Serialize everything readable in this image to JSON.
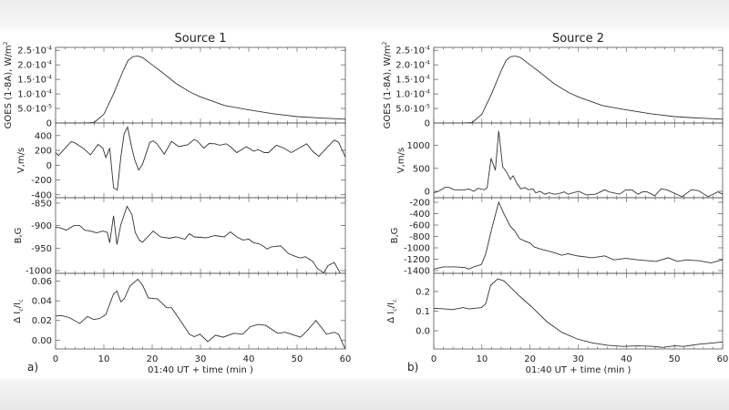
{
  "chart_data": [
    {
      "id": "a",
      "type": "line",
      "title": "Source 1",
      "panel_tag": "a)",
      "xlabel": "01:40 UT + time (min )",
      "xlim": [
        0,
        60
      ],
      "xticks": [
        "0",
        "10",
        "20",
        "30",
        "40",
        "50",
        "60"
      ],
      "panels": [
        {
          "ylabel": "GOES (1-8A), W/m^2",
          "ylim": [
            0,
            0.00026
          ],
          "yticks": [
            {
              "v": 0,
              "label": "0"
            },
            {
              "v": 5e-05,
              "label": "5.0·10^-5"
            },
            {
              "v": 0.0001,
              "label": "1.0·10^-4"
            },
            {
              "v": 0.00015,
              "label": "1.5·10^-4"
            },
            {
              "v": 0.0002,
              "label": "2.0·10^-4"
            },
            {
              "v": 0.00025,
              "label": "2.5·10^-4"
            }
          ],
          "x": [
            0,
            6,
            8,
            10,
            12,
            14,
            15,
            16,
            17,
            18,
            20,
            22,
            25,
            28,
            30,
            35,
            40,
            45,
            50,
            55,
            60
          ],
          "y": [
            0,
            0,
            2e-06,
            3e-05,
            0.0001,
            0.00018,
            0.000215,
            0.000228,
            0.00023,
            0.000225,
            0.0002,
            0.000175,
            0.000135,
            0.000105,
            9e-05,
            6e-05,
            4.5e-05,
            3.2e-05,
            2.2e-05,
            1.7e-05,
            1.3e-05
          ]
        },
        {
          "ylabel": "V,m/s",
          "ylim": [
            -440,
            570
          ],
          "yticks": [
            {
              "v": -400,
              "label": "-400"
            },
            {
              "v": -200,
              "label": "-200"
            },
            {
              "v": 0,
              "label": "0"
            },
            {
              "v": 200,
              "label": "200"
            },
            {
              "v": 400,
              "label": "400"
            }
          ],
          "x": [
            0,
            0.6,
            3.2,
            3.8,
            5.7,
            7.2,
            8.8,
            9.8,
            10.4,
            11.2,
            12,
            12.8,
            13.5,
            14.2,
            14.9,
            15.8,
            16.4,
            17.2,
            18,
            19.5,
            20.2,
            21,
            22.5,
            24,
            25.5,
            27.4,
            28.7,
            29.3,
            30.7,
            31.8,
            33,
            34,
            35.3,
            36.2,
            37.5,
            39.5,
            41,
            42,
            43.2,
            44.1,
            45.7,
            47.3,
            48.8,
            50.4,
            52,
            53.2,
            54.5,
            56.1,
            57.7,
            58.6,
            60
          ],
          "y": [
            170,
            130,
            317,
            309,
            230,
            139,
            281,
            230,
            103,
            230,
            -305,
            -337,
            111,
            428,
            515,
            230,
            71,
            -67,
            12,
            309,
            329,
            289,
            150,
            321,
            250,
            277,
            348,
            329,
            230,
            293,
            289,
            269,
            289,
            250,
            170,
            250,
            190,
            210,
            170,
            170,
            269,
            230,
            170,
            230,
            289,
            190,
            119,
            230,
            340,
            309,
            111
          ]
        },
        {
          "ylabel": "B,G",
          "ylim": [
            -1006,
            -838
          ],
          "yticks": [
            {
              "v": -1000,
              "label": "-1000"
            },
            {
              "v": -950,
              "label": "-950"
            },
            {
              "v": -900,
              "label": "-900"
            },
            {
              "v": -850,
              "label": "-850"
            }
          ],
          "x": [
            0,
            1,
            2.2,
            3.8,
            5,
            6,
            7.2,
            8.5,
            9.8,
            10.7,
            11.2,
            12,
            12.7,
            13.5,
            14.8,
            15.8,
            16.5,
            17.3,
            18,
            20.2,
            21.7,
            23.6,
            24.9,
            26.8,
            27.7,
            28.7,
            31.2,
            33,
            34.9,
            36.2,
            37.5,
            38.8,
            40,
            41,
            42,
            42.8,
            43.8,
            44.7,
            46.6,
            48.2,
            49.8,
            50.7,
            51.7,
            53.2,
            54.2,
            55.5,
            56.4,
            57.7,
            58.9
          ],
          "y": [
            -904,
            -905,
            -910,
            -900,
            -900,
            -910,
            -912,
            -916,
            -912,
            -915,
            -938,
            -878,
            -942,
            -898,
            -857,
            -875,
            -915,
            -932,
            -937,
            -912,
            -925,
            -928,
            -925,
            -930,
            -918,
            -925,
            -927,
            -922,
            -925,
            -914,
            -925,
            -932,
            -930,
            -938,
            -940,
            -944,
            -952,
            -947,
            -945,
            -962,
            -969,
            -972,
            -969,
            -979,
            -995,
            -1005,
            -989,
            -982,
            -1005
          ]
        },
        {
          "ylabel": "Δ I_c/I_c",
          "ylim": [
            -0.009,
            0.068
          ],
          "yticks": [
            {
              "v": 0,
              "label": "0.00"
            },
            {
              "v": 0.02,
              "label": "0.02"
            },
            {
              "v": 0.04,
              "label": "0.04"
            },
            {
              "v": 0.06,
              "label": "0.06"
            }
          ],
          "x": [
            0,
            1.3,
            2.8,
            5,
            6.6,
            7.9,
            9.1,
            10.4,
            12,
            12.7,
            13.5,
            14.2,
            15.4,
            17,
            18,
            19.2,
            21.1,
            23,
            24,
            26.1,
            27.7,
            28.7,
            29.9,
            31.5,
            33.1,
            34.7,
            36.9,
            38.8,
            40.3,
            41.9,
            43.5,
            46,
            47.6,
            50.7,
            52,
            53.9,
            56.1,
            57.7,
            58.6,
            59.9
          ],
          "y": [
            0.0246,
            0.025,
            0.023,
            0.017,
            0.024,
            0.021,
            0.022,
            0.026,
            0.047,
            0.05,
            0.039,
            0.042,
            0.055,
            0.062,
            0.056,
            0.043,
            0.042,
            0.033,
            0.033,
            0.018,
            0.006,
            0.0035,
            0.006,
            -0.0016,
            0.005,
            0.003,
            0.007,
            0.006,
            0.0136,
            0.016,
            0.015,
            0.007,
            0.008,
            0.003,
            0.009,
            0.02,
            0.006,
            0.008,
            0.006,
            -0.0085
          ]
        }
      ]
    },
    {
      "id": "b",
      "type": "line",
      "title": "Source 2",
      "panel_tag": "b)",
      "xlabel": "01:40 UT + time (min )",
      "xlim": [
        0,
        60
      ],
      "xticks": [
        "0",
        "10",
        "20",
        "30",
        "40",
        "50",
        "60"
      ],
      "panels": [
        {
          "ylabel": "GOES (1-8A), W/m^2",
          "ylim": [
            0,
            0.00026
          ],
          "yticks": [
            {
              "v": 0,
              "label": "0"
            },
            {
              "v": 5e-05,
              "label": "5.0·10^-5"
            },
            {
              "v": 0.0001,
              "label": "1.0·10^-4"
            },
            {
              "v": 0.00015,
              "label": "1.5·10^-4"
            },
            {
              "v": 0.0002,
              "label": "2.0·10^-4"
            },
            {
              "v": 0.00025,
              "label": "2.5·10^-4"
            }
          ],
          "x": [
            0,
            6,
            8,
            10,
            12,
            14,
            15,
            16,
            17,
            18,
            20,
            22,
            25,
            28,
            30,
            35,
            40,
            45,
            50,
            55,
            60
          ],
          "y": [
            0,
            0,
            2e-06,
            3e-05,
            0.0001,
            0.00018,
            0.000215,
            0.000228,
            0.00023,
            0.000225,
            0.0002,
            0.000175,
            0.000135,
            0.000105,
            9e-05,
            6e-05,
            4.5e-05,
            3.2e-05,
            2.2e-05,
            1.7e-05,
            1.3e-05
          ]
        },
        {
          "ylabel": "V,m/s",
          "ylim": [
            -140,
            1490
          ],
          "yticks": [
            {
              "v": 0,
              "label": "0"
            },
            {
              "v": 500,
              "label": "500"
            },
            {
              "v": 1000,
              "label": "1000"
            }
          ],
          "x": [
            0,
            1,
            2.3,
            3.2,
            4.2,
            6.4,
            7.3,
            8.3,
            9.2,
            10.5,
            11.1,
            11.9,
            12.8,
            13.5,
            14.3,
            15.1,
            15.9,
            16.5,
            17.3,
            18.1,
            18.9,
            19.7,
            20.6,
            21.2,
            22.1,
            23.1,
            24,
            25,
            26,
            27.1,
            27.9,
            30.1,
            31.7,
            33.6,
            35.5,
            36.4,
            38.6,
            39.9,
            41.2,
            42.4,
            43.4,
            44.3,
            45.9,
            47.2,
            48.4,
            51.6,
            53.5,
            55,
            57,
            59,
            60
          ],
          "y": [
            -33,
            0,
            85,
            85,
            33,
            33,
            52,
            0,
            65,
            33,
            78,
            719,
            458,
            1321,
            536,
            425,
            262,
            340,
            164,
            52,
            85,
            33,
            52,
            -33,
            0,
            -65,
            -33,
            -65,
            -52,
            -13,
            -65,
            0,
            -78,
            -65,
            33,
            -13,
            -65,
            33,
            26,
            -65,
            -13,
            -13,
            -98,
            52,
            33,
            -118,
            33,
            13,
            -118,
            -13,
            -65
          ]
        },
        {
          "ylabel": "B,G",
          "ylim": [
            -1448,
            -120
          ],
          "yticks": [
            {
              "v": -1400,
              "label": "-1400"
            },
            {
              "v": -1200,
              "label": "-1200"
            },
            {
              "v": -1000,
              "label": "-1000"
            },
            {
              "v": -800,
              "label": "-800"
            },
            {
              "v": -600,
              "label": "-600"
            },
            {
              "v": -400,
              "label": "-400"
            },
            {
              "v": -200,
              "label": "-200"
            }
          ],
          "x": [
            0,
            2,
            4.5,
            6.4,
            7.3,
            8.3,
            9.9,
            10.8,
            12.1,
            13.5,
            14.6,
            15.9,
            16.8,
            17.8,
            18.7,
            20,
            20.9,
            22.2,
            24.7,
            26.6,
            27.9,
            29.8,
            32.9,
            35.5,
            37.4,
            39.9,
            42.4,
            46.2,
            48.7,
            50.6,
            52.5,
            55.1,
            57.6,
            60
          ],
          "y": [
            -1373,
            -1335,
            -1335,
            -1346,
            -1373,
            -1335,
            -1292,
            -1104,
            -647,
            -200,
            -404,
            -620,
            -700,
            -835,
            -873,
            -916,
            -985,
            -1023,
            -1077,
            -1131,
            -1104,
            -1141,
            -1174,
            -1141,
            -1211,
            -1185,
            -1211,
            -1238,
            -1174,
            -1238,
            -1211,
            -1227,
            -1265,
            -1211
          ]
        },
        {
          "ylabel": "Δ I_c/I_c",
          "ylim": [
            -0.093,
            0.293
          ],
          "yticks": [
            {
              "v": 0,
              "label": "0.0"
            },
            {
              "v": 0.1,
              "label": "0.1"
            },
            {
              "v": 0.2,
              "label": "0.2"
            }
          ],
          "x": [
            0,
            2,
            3.9,
            6.1,
            7.3,
            9.9,
            10.8,
            11.8,
            13.3,
            14.6,
            15.9,
            17.8,
            20.3,
            23.5,
            26.6,
            29.8,
            32.9,
            36.1,
            39.3,
            42.4,
            45.6,
            47.5,
            50,
            51.9,
            55.1,
            58.2,
            60
          ],
          "y": [
            0.115,
            0.112,
            0.108,
            0.118,
            0.111,
            0.118,
            0.138,
            0.231,
            0.265,
            0.254,
            0.223,
            0.177,
            0.123,
            0.046,
            -0.008,
            -0.042,
            -0.062,
            -0.074,
            -0.08,
            -0.077,
            -0.08,
            -0.085,
            -0.077,
            -0.08,
            -0.069,
            -0.062,
            -0.057
          ]
        }
      ]
    }
  ],
  "colors": {
    "line": "#333333",
    "frame": "#555555",
    "text": "#222222"
  }
}
